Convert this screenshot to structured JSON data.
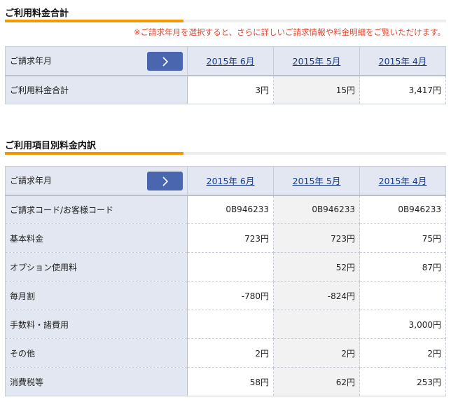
{
  "section1": {
    "title": "ご利用料金合計",
    "notice": "※ご請求年月を選択すると、さらに詳しいご請求情報や料金明細をご覧いただけます。",
    "header_label": "ご請求年月",
    "months": [
      "2015年 6月",
      "2015年 5月",
      "2015年 4月"
    ],
    "rows": [
      {
        "label": "ご利用料金合計",
        "values": [
          "3円",
          "15円",
          "3,417円"
        ]
      }
    ]
  },
  "section2": {
    "title": "ご利用項目別料金内訳",
    "header_label": "ご請求年月",
    "months": [
      "2015年 6月",
      "2015年 5月",
      "2015年 4月"
    ],
    "rows": [
      {
        "label": "ご請求コード/お客様コード",
        "values": [
          "0B946233",
          "0B946233",
          "0B946233"
        ]
      },
      {
        "label": "基本料金",
        "values": [
          "723円",
          "723円",
          "75円"
        ]
      },
      {
        "label": "オプション使用料",
        "values": [
          "",
          "52円",
          "87円"
        ]
      },
      {
        "label": "毎月割",
        "values": [
          "-780円",
          "-824円",
          ""
        ]
      },
      {
        "label": "手数料・諸費用",
        "values": [
          "",
          "",
          "3,000円"
        ]
      },
      {
        "label": "その他",
        "values": [
          "2円",
          "2円",
          "2円"
        ]
      },
      {
        "label": "消費税等",
        "values": [
          "58円",
          "62円",
          "253円"
        ]
      }
    ]
  },
  "icons": {
    "next": "chevron-right-icon"
  },
  "colors": {
    "accent": "#f39800",
    "notice": "#e8432e",
    "button": "#4a66ae",
    "link": "#1a3c8c",
    "header_bg": "#e2e7f1"
  }
}
